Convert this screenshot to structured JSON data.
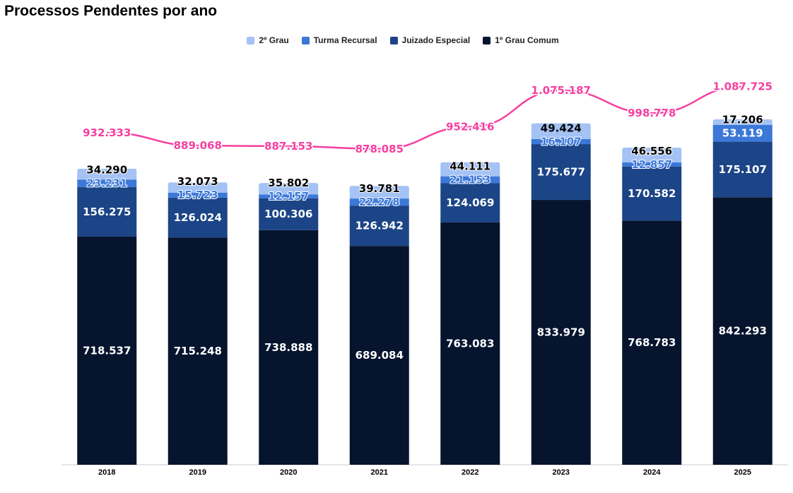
{
  "chart_data": {
    "type": "bar",
    "stacked": true,
    "title": "Processos Pendentes por ano",
    "categories": [
      "2018",
      "2019",
      "2020",
      "2021",
      "2022",
      "2023",
      "2024",
      "2025"
    ],
    "series": [
      {
        "name": "1º Grau Comum",
        "color": "#06142e",
        "label_color": "#ffffff",
        "values": [
          718537,
          715248,
          738888,
          689084,
          763083,
          833979,
          768783,
          842293
        ],
        "labels": [
          "718.537",
          "715.248",
          "738.888",
          "689.084",
          "763.083",
          "833.979",
          "768.783",
          "842.293"
        ]
      },
      {
        "name": "Juizado Especial",
        "color": "#1c4587",
        "label_color": "#ffffff",
        "values": [
          156275,
          126024,
          100306,
          126942,
          124069,
          175677,
          170582,
          175107
        ],
        "labels": [
          "156.275",
          "126.024",
          "100.306",
          "126.942",
          "124.069",
          "175.677",
          "170.582",
          "175.107"
        ]
      },
      {
        "name": "Turma Recursal",
        "color": "#3c78d8",
        "label_color": "#ffffff",
        "values": [
          23231,
          15723,
          12157,
          22278,
          21153,
          16107,
          12857,
          53119
        ],
        "labels": [
          "23.231",
          "15.723",
          "12.157",
          "22.278",
          "21.153",
          "16.107",
          "12.857",
          "53.119"
        ]
      },
      {
        "name": "2º Grau",
        "color": "#a4c2f4",
        "label_color": "#000000",
        "values": [
          34290,
          32073,
          35802,
          39781,
          44111,
          49424,
          46556,
          17206
        ],
        "labels": [
          "34.290",
          "32.073",
          "35.802",
          "39.781",
          "44.111",
          "49.424",
          "46.556",
          "17.206"
        ]
      }
    ],
    "legend_order": [
      "2º Grau",
      "Turma Recursal",
      "Juizado Especial",
      "1º Grau Comum"
    ],
    "legend_position": "top",
    "total_line": {
      "type": "line",
      "color": "#f53fa0",
      "values": [
        932333,
        889068,
        887153,
        878085,
        952416,
        1075187,
        998778,
        1087725
      ],
      "labels": [
        "932.333",
        "889.068",
        "887.153",
        "878.085",
        "952.416",
        "1.075.187",
        "998.778",
        "1.087.725"
      ],
      "ylim": [
        -186700,
        1151400
      ]
    },
    "ylim": [
      0,
      1250000
    ],
    "grid": false,
    "y_axis_visible": false
  }
}
